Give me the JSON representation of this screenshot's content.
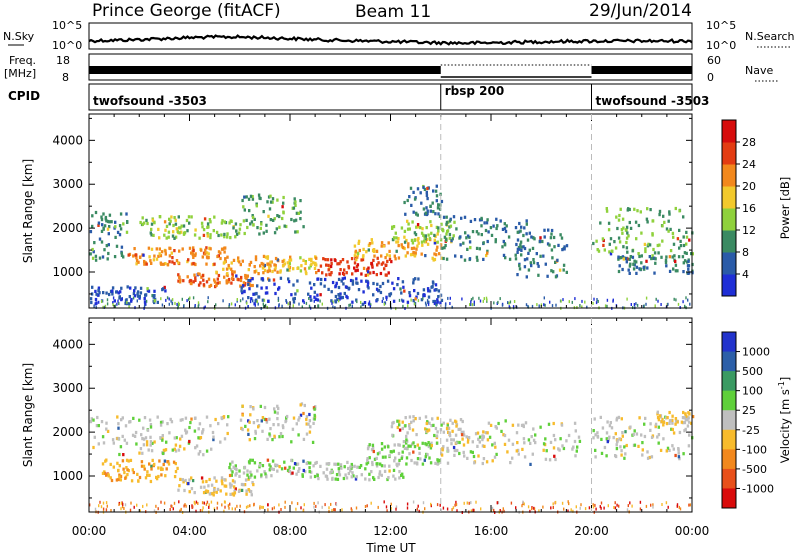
{
  "header": {
    "title": "Prince George (fitACF)",
    "beam": "Beam 11",
    "date": "29/Jun/2014"
  },
  "panels": {
    "nsky": {
      "left_label": "N.Sky",
      "left_ticks": [
        "10^5",
        "10^0"
      ],
      "right_label": "N.Search",
      "right_ticks": [
        "10^5",
        "10^0"
      ]
    },
    "freq": {
      "left_label_1": "Freq.",
      "left_label_2": "[MHz]",
      "left_ticks": [
        "18",
        "8"
      ],
      "right_label": "Nave",
      "right_ticks": [
        "60",
        "0"
      ]
    },
    "cpid": {
      "label": "CPID",
      "segments": [
        {
          "start_hr": 0,
          "end_hr": 14,
          "name": "twofsound -3503"
        },
        {
          "start_hr": 14,
          "end_hr": 20,
          "name": "rbsp 200"
        },
        {
          "start_hr": 20,
          "end_hr": 24,
          "name": "twofsound -3503"
        }
      ]
    }
  },
  "axes": {
    "x_ticks": [
      "00:00",
      "04:00",
      "08:00",
      "12:00",
      "16:00",
      "20:00",
      "00:00"
    ],
    "x_label": "Time UT",
    "y_ticks": [
      "1000",
      "2000",
      "3000",
      "4000"
    ],
    "y_label": "Slant Range [km]"
  },
  "chart_data": [
    {
      "type": "heatmap",
      "name": "power",
      "x_unit": "hours UT",
      "xlim": [
        0,
        24
      ],
      "ylim": [
        180,
        4600
      ],
      "colorbar_label": "Power [dB]",
      "colorbar_ticks": [
        "4",
        "8",
        "12",
        "16",
        "20",
        "24",
        "28"
      ],
      "colorbar_range": [
        0,
        32
      ],
      "colors": [
        "#1f2fd6",
        "#2a5ba8",
        "#3a8a62",
        "#8fd13c",
        "#f2c92c",
        "#f2881c",
        "#e33c12",
        "#d60c0c"
      ],
      "echo_regions": [
        {
          "t0": 0.0,
          "t1": 1.5,
          "r0": 1300,
          "r1": 2400,
          "v": 10
        },
        {
          "t0": 0.0,
          "t1": 3.0,
          "r0": 300,
          "r1": 700,
          "v": 5
        },
        {
          "t0": 1.5,
          "t1": 5.5,
          "r0": 1200,
          "r1": 1600,
          "v": 22
        },
        {
          "t0": 2.0,
          "t1": 6.0,
          "r0": 1800,
          "r1": 2300,
          "v": 14
        },
        {
          "t0": 3.5,
          "t1": 6.5,
          "r0": 700,
          "r1": 1000,
          "v": 24
        },
        {
          "t0": 5.0,
          "t1": 7.5,
          "r0": 1000,
          "r1": 1400,
          "v": 21
        },
        {
          "t0": 6.0,
          "t1": 14.0,
          "r0": 300,
          "r1": 900,
          "v": 4
        },
        {
          "t0": 6.0,
          "t1": 8.5,
          "r0": 1900,
          "r1": 2800,
          "v": 11
        },
        {
          "t0": 7.5,
          "t1": 9.0,
          "r0": 1000,
          "r1": 1400,
          "v": 18
        },
        {
          "t0": 9.0,
          "t1": 12.0,
          "r0": 950,
          "r1": 1350,
          "v": 27
        },
        {
          "t0": 10.5,
          "t1": 14.0,
          "r0": 1300,
          "r1": 1800,
          "v": 20
        },
        {
          "t0": 12.0,
          "t1": 14.5,
          "r0": 1700,
          "r1": 2200,
          "v": 14
        },
        {
          "t0": 12.5,
          "t1": 14.0,
          "r0": 2300,
          "r1": 3000,
          "v": 8
        },
        {
          "t0": 14.0,
          "t1": 17.5,
          "r0": 1300,
          "r1": 2300,
          "v": 9
        },
        {
          "t0": 17.0,
          "t1": 19.0,
          "r0": 900,
          "r1": 2000,
          "v": 8
        },
        {
          "t0": 20.0,
          "t1": 24.0,
          "r0": 1400,
          "r1": 2500,
          "v": 12
        },
        {
          "t0": 21.0,
          "t1": 24.0,
          "r0": 1000,
          "r1": 1400,
          "v": 9
        }
      ]
    },
    {
      "type": "heatmap",
      "name": "velocity",
      "x_unit": "hours UT",
      "xlim": [
        0,
        24
      ],
      "ylim": [
        180,
        4600
      ],
      "colorbar_label": "Velocity [m s^-1]",
      "colorbar_ticks": [
        "1000",
        "500",
        "100",
        "25",
        "-25",
        "-100",
        "-500",
        "-1000"
      ],
      "colorbar_range": [
        -1000,
        1000
      ],
      "colors": [
        "#2233cc",
        "#2c5fa8",
        "#3a9a62",
        "#5fd03a",
        "#bfbfbf",
        "#f7bb2c",
        "#f2881c",
        "#e8501a",
        "#d90b0b"
      ],
      "echo_regions": [
        {
          "t0": 0.0,
          "t1": 5.5,
          "r0": 1500,
          "r1": 2400,
          "v": 0
        },
        {
          "t0": 0.5,
          "t1": 3.5,
          "r0": 900,
          "r1": 1400,
          "v": -300
        },
        {
          "t0": 3.5,
          "t1": 6.5,
          "r0": 600,
          "r1": 1000,
          "v": -120
        },
        {
          "t0": 5.5,
          "t1": 9.0,
          "r0": 1000,
          "r1": 1400,
          "v": 120
        },
        {
          "t0": 9.0,
          "t1": 12.5,
          "r0": 950,
          "r1": 1350,
          "v": 90
        },
        {
          "t0": 11.0,
          "t1": 14.0,
          "r0": 1300,
          "r1": 1800,
          "v": 100
        },
        {
          "t0": 6.0,
          "t1": 9.0,
          "r0": 1800,
          "r1": 2700,
          "v": 0
        },
        {
          "t0": 12.0,
          "t1": 15.0,
          "r0": 1700,
          "r1": 2400,
          "v": 0
        },
        {
          "t0": 14.0,
          "t1": 19.5,
          "r0": 1300,
          "r1": 2300,
          "v": 0
        },
        {
          "t0": 20.0,
          "t1": 24.0,
          "r0": 1400,
          "r1": 2400,
          "v": 0
        },
        {
          "t0": 22.5,
          "t1": 24.0,
          "r0": 2200,
          "r1": 2500,
          "v": -150
        }
      ]
    }
  ]
}
